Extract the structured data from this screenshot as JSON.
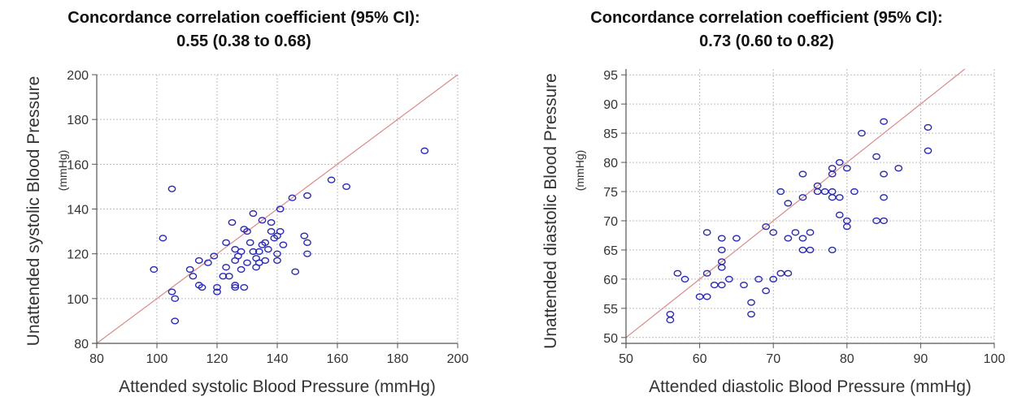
{
  "chart_data": [
    {
      "type": "scatter",
      "title": "Concordance correlation coefficient (95% CI):",
      "subtitle": "0.55 (0.38 to 0.68)",
      "xlabel": "Attended systolic Blood Pressure (mmHg)",
      "ylabel": "Unattended systolic Blood Pressure",
      "ylabel_unit": "(mmHg)",
      "xlim": [
        80,
        200
      ],
      "ylim": [
        80,
        200
      ],
      "xticks": [
        "80",
        "100",
        "120",
        "140",
        "160",
        "180",
        "200"
      ],
      "yticks": [
        "80",
        "100",
        "120",
        "140",
        "160",
        "180",
        "200"
      ],
      "grid": true,
      "identity_line": true,
      "colors": {
        "points": "#2b2bb0",
        "line": "#d98a8a",
        "grid": "#bdbdbd",
        "axis": "#555555"
      },
      "points": [
        [
          99,
          113
        ],
        [
          102,
          127
        ],
        [
          105,
          149
        ],
        [
          105,
          103
        ],
        [
          106,
          100
        ],
        [
          106,
          90
        ],
        [
          111,
          113
        ],
        [
          112,
          110
        ],
        [
          114,
          117
        ],
        [
          114,
          106
        ],
        [
          115,
          105
        ],
        [
          117,
          116
        ],
        [
          119,
          119
        ],
        [
          120,
          105
        ],
        [
          120,
          103
        ],
        [
          122,
          110
        ],
        [
          123,
          114
        ],
        [
          123,
          125
        ],
        [
          124,
          110
        ],
        [
          125,
          134
        ],
        [
          126,
          122
        ],
        [
          126,
          117
        ],
        [
          126,
          105
        ],
        [
          126,
          106
        ],
        [
          127,
          119
        ],
        [
          128,
          121
        ],
        [
          128,
          113
        ],
        [
          129,
          131
        ],
        [
          129,
          105
        ],
        [
          130,
          130
        ],
        [
          130,
          116
        ],
        [
          131,
          125
        ],
        [
          132,
          121
        ],
        [
          132,
          138
        ],
        [
          133,
          118
        ],
        [
          133,
          114
        ],
        [
          134,
          116
        ],
        [
          134,
          121
        ],
        [
          135,
          124
        ],
        [
          135,
          135
        ],
        [
          136,
          117
        ],
        [
          136,
          125
        ],
        [
          137,
          122
        ],
        [
          138,
          130
        ],
        [
          138,
          134
        ],
        [
          139,
          127
        ],
        [
          140,
          120
        ],
        [
          140,
          117
        ],
        [
          140,
          128
        ],
        [
          141,
          140
        ],
        [
          141,
          130
        ],
        [
          142,
          124
        ],
        [
          145,
          145
        ],
        [
          146,
          112
        ],
        [
          149,
          128
        ],
        [
          150,
          146
        ],
        [
          150,
          125
        ],
        [
          150,
          120
        ],
        [
          158,
          153
        ],
        [
          163,
          150
        ],
        [
          189,
          166
        ]
      ]
    },
    {
      "type": "scatter",
      "title": "Concordance correlation coefficient (95% CI):",
      "subtitle": "0.73 (0.60 to 0.82)",
      "xlabel": "Attended diastolic Blood Pressure (mmHg)",
      "ylabel": "Unattended diastolic Blood Pressure",
      "ylabel_unit": "(mmHg)",
      "xlim": [
        50,
        100
      ],
      "ylim": [
        49,
        96
      ],
      "xticks": [
        "50",
        "60",
        "70",
        "80",
        "90",
        "100"
      ],
      "yticks": [
        "50",
        "55",
        "60",
        "65",
        "70",
        "75",
        "80",
        "85",
        "90",
        "95"
      ],
      "grid": true,
      "identity_line": true,
      "colors": {
        "points": "#2b2bb0",
        "line": "#d98a8a",
        "grid": "#bdbdbd",
        "axis": "#555555"
      },
      "points": [
        [
          56,
          54
        ],
        [
          56,
          53
        ],
        [
          57,
          61
        ],
        [
          58,
          60
        ],
        [
          60,
          57
        ],
        [
          61,
          57
        ],
        [
          61,
          61
        ],
        [
          61,
          68
        ],
        [
          62,
          59
        ],
        [
          63,
          59
        ],
        [
          63,
          62
        ],
        [
          63,
          63
        ],
        [
          63,
          65
        ],
        [
          63,
          67
        ],
        [
          64,
          60
        ],
        [
          65,
          67
        ],
        [
          66,
          59
        ],
        [
          67,
          54
        ],
        [
          67,
          56
        ],
        [
          68,
          60
        ],
        [
          69,
          58
        ],
        [
          69,
          69
        ],
        [
          70,
          60
        ],
        [
          70,
          68
        ],
        [
          71,
          61
        ],
        [
          71,
          75
        ],
        [
          72,
          61
        ],
        [
          72,
          67
        ],
        [
          72,
          73
        ],
        [
          73,
          68
        ],
        [
          74,
          65
        ],
        [
          74,
          67
        ],
        [
          74,
          74
        ],
        [
          74,
          78
        ],
        [
          75,
          65
        ],
        [
          75,
          68
        ],
        [
          76,
          75
        ],
        [
          76,
          76
        ],
        [
          77,
          75
        ],
        [
          78,
          65
        ],
        [
          78,
          74
        ],
        [
          78,
          75
        ],
        [
          78,
          78
        ],
        [
          78,
          79
        ],
        [
          79,
          71
        ],
        [
          79,
          74
        ],
        [
          79,
          80
        ],
        [
          80,
          69
        ],
        [
          80,
          70
        ],
        [
          80,
          79
        ],
        [
          81,
          75
        ],
        [
          82,
          85
        ],
        [
          84,
          70
        ],
        [
          84,
          81
        ],
        [
          85,
          70
        ],
        [
          85,
          74
        ],
        [
          85,
          78
        ],
        [
          85,
          87
        ],
        [
          87,
          79
        ],
        [
          91,
          86
        ],
        [
          91,
          82
        ]
      ]
    }
  ]
}
